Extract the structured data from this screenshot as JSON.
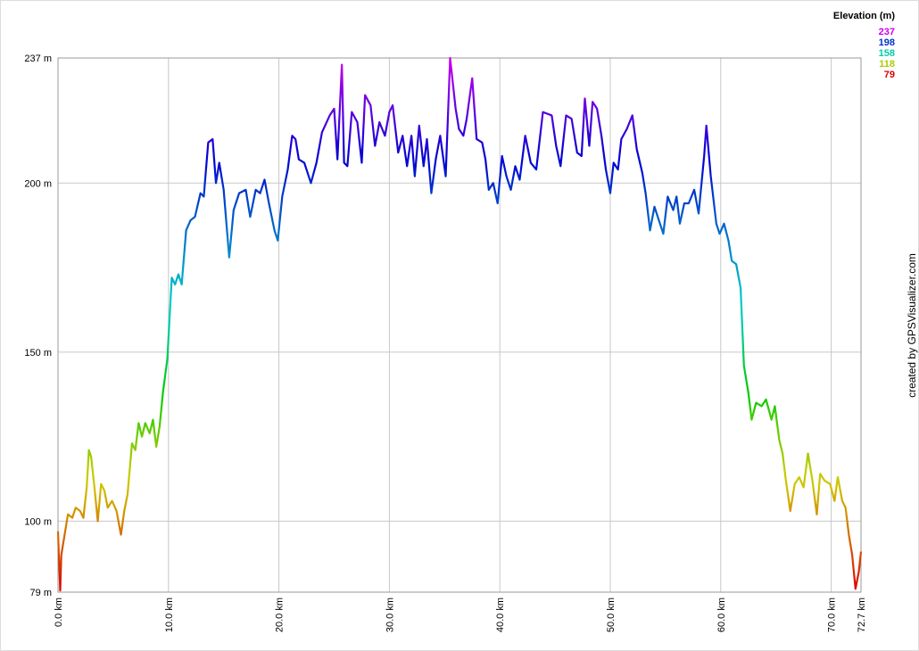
{
  "chart_data": {
    "type": "line",
    "legend_title": "Elevation (m)",
    "credit": "created by GPSVisualizer.com",
    "color_scale": [
      {
        "value": 237,
        "color": "#cc00ee"
      },
      {
        "value": 198,
        "color": "#0033cc"
      },
      {
        "value": 158,
        "color": "#00ccaa"
      },
      {
        "value": 118,
        "color": "#aacc00"
      },
      {
        "value": 79,
        "color": "#dd0000"
      }
    ],
    "xlim": [
      0,
      72.7
    ],
    "ylim": [
      79,
      237
    ],
    "grid": true,
    "xticks": [
      {
        "value": 0,
        "label": "0.0 km"
      },
      {
        "value": 10,
        "label": "10.0 km"
      },
      {
        "value": 20,
        "label": "20.0 km"
      },
      {
        "value": 30,
        "label": "30.0 km"
      },
      {
        "value": 40,
        "label": "40.0 km"
      },
      {
        "value": 50,
        "label": "50.0 km"
      },
      {
        "value": 60,
        "label": "60.0 km"
      },
      {
        "value": 70,
        "label": "70.0 km"
      },
      {
        "value": 72.7,
        "label": "72.7 km"
      }
    ],
    "yticks": [
      {
        "value": 79,
        "label": "79 m"
      },
      {
        "value": 100,
        "label": "100 m"
      },
      {
        "value": 150,
        "label": "150 m"
      },
      {
        "value": 200,
        "label": "200 m"
      },
      {
        "value": 237,
        "label": "237 m"
      }
    ],
    "x": [
      0.0,
      0.1,
      0.2,
      0.3,
      0.6,
      0.9,
      1.3,
      1.6,
      2.0,
      2.3,
      2.6,
      2.8,
      3.0,
      3.3,
      3.6,
      3.9,
      4.2,
      4.5,
      4.9,
      5.3,
      5.7,
      6.0,
      6.3,
      6.7,
      7.0,
      7.3,
      7.6,
      7.9,
      8.3,
      8.6,
      8.9,
      9.2,
      9.5,
      9.9,
      10.3,
      10.6,
      10.9,
      11.2,
      11.6,
      12.0,
      12.4,
      12.9,
      13.2,
      13.6,
      14.0,
      14.3,
      14.6,
      15.0,
      15.5,
      15.9,
      16.4,
      17.0,
      17.4,
      17.9,
      18.3,
      18.7,
      19.1,
      19.6,
      19.9,
      20.3,
      20.8,
      21.2,
      21.5,
      21.8,
      22.3,
      22.9,
      23.4,
      23.9,
      24.6,
      25.0,
      25.3,
      25.7,
      25.9,
      26.2,
      26.6,
      27.1,
      27.5,
      27.8,
      28.3,
      28.7,
      29.1,
      29.6,
      30.0,
      30.3,
      30.8,
      31.2,
      31.6,
      32.0,
      32.3,
      32.7,
      33.1,
      33.4,
      33.8,
      34.2,
      34.6,
      35.1,
      35.5,
      36.0,
      36.3,
      36.7,
      37.0,
      37.5,
      37.9,
      38.4,
      38.7,
      39.0,
      39.4,
      39.8,
      40.2,
      40.6,
      41.0,
      41.4,
      41.8,
      42.3,
      42.8,
      43.3,
      43.9,
      44.7,
      45.1,
      45.5,
      46.0,
      46.5,
      47.0,
      47.4,
      47.7,
      48.1,
      48.4,
      48.8,
      49.2,
      49.6,
      50.0,
      50.3,
      50.7,
      51.0,
      51.5,
      52.0,
      52.4,
      52.9,
      53.2,
      53.6,
      54.0,
      54.4,
      54.8,
      55.2,
      55.7,
      56.0,
      56.3,
      56.7,
      57.1,
      57.6,
      58.0,
      58.5,
      58.7,
      59.1,
      59.6,
      59.9,
      60.3,
      60.7,
      61.0,
      61.4,
      61.8,
      62.1,
      62.5,
      62.8,
      63.2,
      63.7,
      64.1,
      64.6,
      64.9,
      65.3,
      65.6,
      65.9,
      66.3,
      66.7,
      67.1,
      67.5,
      67.9,
      68.3,
      68.7,
      69.0,
      69.4,
      69.9,
      70.3,
      70.6,
      71.0,
      71.3,
      71.6,
      71.9,
      72.2,
      72.5,
      72.7
    ],
    "values": [
      97,
      88,
      79.5,
      90,
      96,
      102,
      101,
      104,
      103,
      101,
      110,
      121,
      119,
      110,
      100,
      111,
      109,
      104,
      106,
      103,
      96,
      103,
      108,
      123,
      121,
      129,
      125,
      129,
      126,
      130,
      122,
      128,
      138,
      148,
      172,
      170,
      173,
      170,
      186,
      189,
      190,
      197,
      196,
      212,
      213,
      200,
      206,
      198,
      178,
      192,
      197,
      198,
      190,
      198,
      197,
      201,
      194,
      186,
      183,
      196,
      204,
      214,
      213,
      207,
      206,
      200,
      206,
      215,
      220,
      222,
      207,
      235,
      206,
      205,
      221,
      218,
      206,
      226,
      223,
      211,
      218,
      214,
      221,
      223,
      209,
      214,
      205,
      214,
      202,
      217,
      205,
      213,
      197,
      207,
      214,
      202,
      237,
      222,
      216,
      214,
      219,
      231,
      213,
      212,
      207,
      198,
      200,
      194,
      208,
      202,
      198,
      205,
      201,
      214,
      206,
      204,
      221,
      220,
      211,
      205,
      220,
      219,
      209,
      208,
      225,
      211,
      224,
      222,
      214,
      204,
      197,
      206,
      204,
      213,
      216,
      220,
      210,
      203,
      197,
      186,
      193,
      189,
      185,
      196,
      192,
      196,
      188,
      194,
      194,
      198,
      191,
      208,
      217,
      202,
      188,
      185,
      188,
      183,
      177,
      176,
      169,
      146,
      138,
      130,
      135,
      134,
      136,
      130,
      134,
      124,
      120,
      112,
      103,
      111,
      113,
      110,
      120,
      112,
      102,
      114,
      112,
      111,
      106,
      113,
      106,
      104,
      96,
      90,
      80,
      85,
      91
    ]
  }
}
